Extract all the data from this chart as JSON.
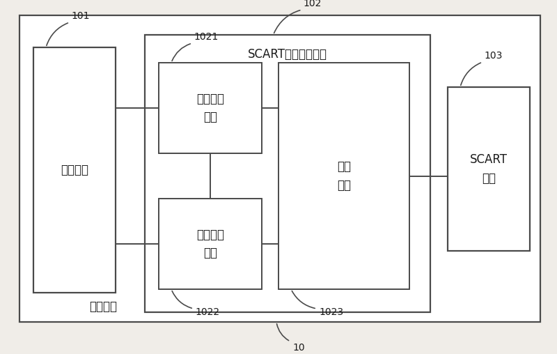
{
  "bg_color": "#f0ede8",
  "box_facecolor": "#ffffff",
  "border_color": "#4a4a4a",
  "text_color": "#1a1a1a",
  "line_color": "#4a4a4a",
  "title": "SCART接口控制电路",
  "label_101": "101",
  "label_102": "102",
  "label_103": "103",
  "label_1021": "1021",
  "label_1022": "1022",
  "label_1023": "1023",
  "label_10": "10",
  "text_chip": "处理芯片",
  "text_scart_iface": "SCART\n接口",
  "text_sw1": "第一开关\n电路",
  "text_sw2": "第二开关\n电路",
  "text_divider": "分压\n电路",
  "text_device": "电子设备",
  "figsize": [
    8.0,
    5.08
  ],
  "dpi": 100
}
